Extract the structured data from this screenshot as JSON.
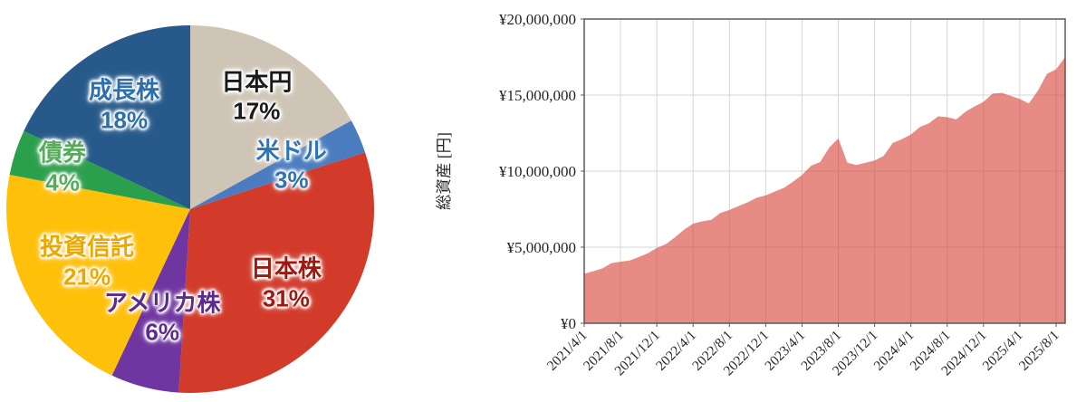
{
  "page": {
    "background": "#ffffff"
  },
  "chart_data": [
    {
      "type": "pie",
      "name": "asset-allocation-pie",
      "start_angle_deg": 0,
      "direction": "clockwise",
      "slices": [
        {
          "label": "日本円",
          "pct": 17,
          "pct_label": "17%",
          "color": "#CFC5B6",
          "text_color": "#1a1a1a",
          "label_r": 0.71
        },
        {
          "label": "米ドル",
          "pct": 3,
          "pct_label": "3%",
          "color": "#4A7CBF",
          "text_color": "#2E74B5",
          "label_r": 0.6
        },
        {
          "label": "日本株",
          "pct": 31,
          "pct_label": "31%",
          "color": "#D23A2A",
          "text_color": "#9C1A10",
          "label_r": 0.66
        },
        {
          "label": "アメリカ株",
          "pct": 6,
          "pct_label": "6%",
          "color": "#6F35A0",
          "text_color": "#5B2C8E",
          "label_r": 0.61
        },
        {
          "label": "投資信託",
          "pct": 21,
          "pct_label": "21%",
          "color": "#FFC00A",
          "text_color": "#EDA800",
          "label_r": 0.63
        },
        {
          "label": "債券",
          "pct": 4,
          "pct_label": "4%",
          "color": "#2BA04C",
          "text_color": "#55AD5C",
          "label_r": 0.73
        },
        {
          "label": "成長株",
          "pct": 18,
          "pct_label": "18%",
          "color": "#275A8B",
          "text_color": "#2C6FAC",
          "label_r": 0.67
        }
      ]
    },
    {
      "type": "area",
      "name": "total-assets-over-time",
      "ylabel": "総資産 [円]",
      "ylim": [
        0,
        20000000
      ],
      "grid": true,
      "fill_color": "#D64538",
      "fill_opacity": 0.62,
      "border_color": "#595959",
      "grid_color": "#D6D6D6",
      "y_tick_labels": [
        "¥0",
        "¥5,000,000",
        "¥10,000,000",
        "¥15,000,000",
        "¥20,000,000"
      ],
      "y_tick_values": [
        0,
        5000000,
        10000000,
        15000000,
        20000000
      ],
      "x_tick_labels": [
        "2021/4/1",
        "2021/8/1",
        "2021/12/1",
        "2022/4/1",
        "2022/8/1",
        "2022/12/1",
        "2023/4/1",
        "2023/8/1",
        "2023/12/1",
        "2024/4/1",
        "2024/8/1",
        "2024/12/1",
        "2025/4/1",
        "2025/8/1"
      ],
      "x_label_every": 4,
      "x": [
        "2021/4",
        "2021/5",
        "2021/6",
        "2021/7",
        "2021/8",
        "2021/9",
        "2021/10",
        "2021/11",
        "2021/12",
        "2022/1",
        "2022/2",
        "2022/3",
        "2022/4",
        "2022/5",
        "2022/6",
        "2022/7",
        "2022/8",
        "2022/9",
        "2022/10",
        "2022/11",
        "2022/12",
        "2023/1",
        "2023/2",
        "2023/3",
        "2023/4",
        "2023/5",
        "2023/6",
        "2023/7",
        "2023/8",
        "2023/9",
        "2023/10",
        "2023/11",
        "2023/12",
        "2024/1",
        "2024/2",
        "2024/3",
        "2024/4",
        "2024/5",
        "2024/6",
        "2024/7",
        "2024/8",
        "2024/9",
        "2024/10",
        "2024/11",
        "2024/12",
        "2025/1",
        "2025/2",
        "2025/3",
        "2025/4",
        "2025/5",
        "2025/6",
        "2025/7",
        "2025/8",
        "2025/9"
      ],
      "values": [
        3250000,
        3420000,
        3600000,
        3950000,
        4050000,
        4120000,
        4350000,
        4600000,
        4950000,
        5200000,
        5650000,
        6150000,
        6550000,
        6700000,
        6800000,
        7250000,
        7450000,
        7700000,
        7950000,
        8250000,
        8400000,
        8650000,
        8900000,
        9300000,
        9750000,
        10350000,
        10600000,
        11550000,
        12150000,
        10550000,
        10400000,
        10550000,
        10700000,
        11000000,
        11850000,
        12100000,
        12400000,
        12900000,
        13150000,
        13600000,
        13550000,
        13400000,
        13900000,
        14250000,
        14550000,
        15100000,
        15150000,
        14950000,
        14750000,
        14450000,
        15300000,
        16400000,
        16700000,
        17500000
      ]
    }
  ]
}
